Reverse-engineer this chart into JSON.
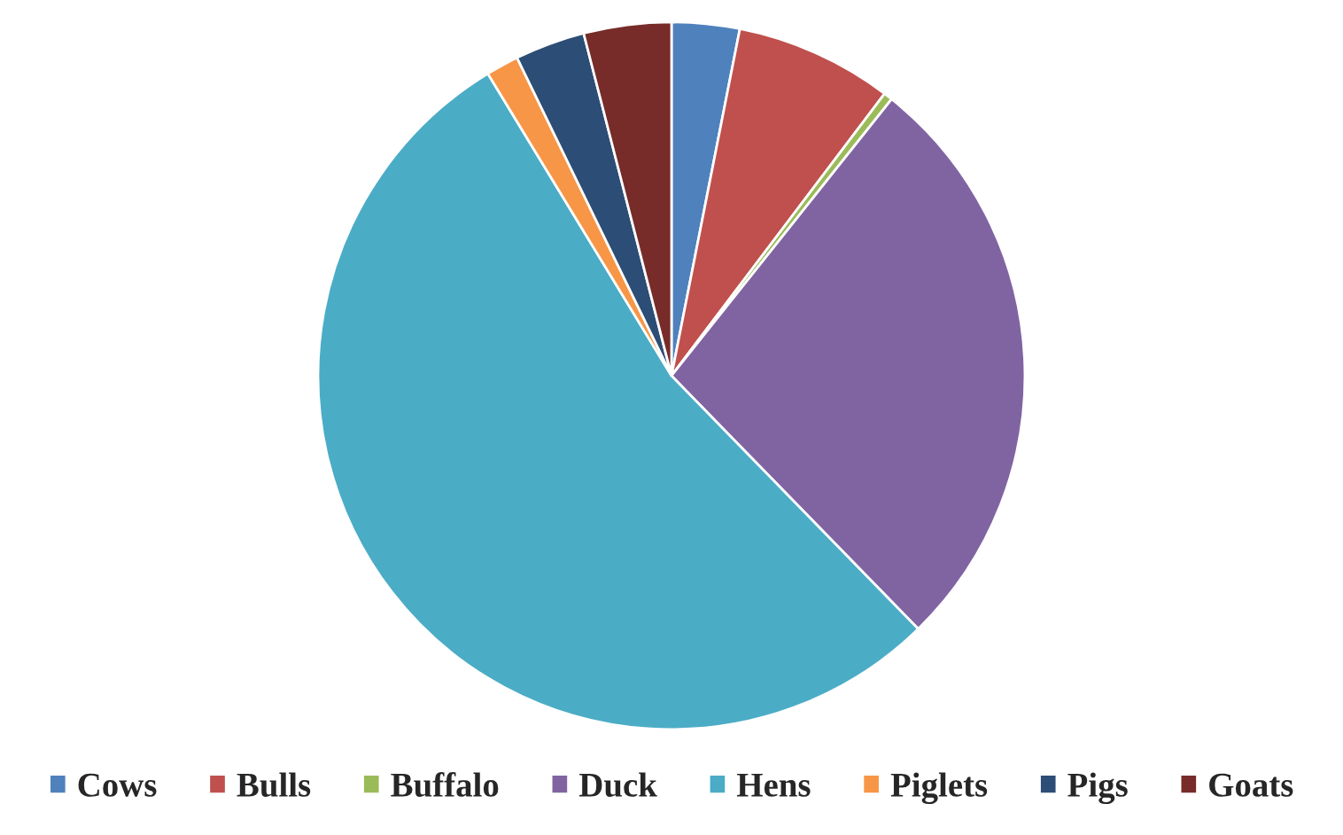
{
  "chart_data": {
    "type": "pie",
    "categories": [
      "Cows",
      "Bulls",
      "Buffalo",
      "Duck",
      "Hens",
      "Piglets",
      "Pigs",
      "Goats"
    ],
    "values": [
      3.1,
      7.2,
      0.4,
      27,
      53.6,
      1.5,
      3.2,
      4
    ],
    "colors": [
      "#4f81bd",
      "#c0504d",
      "#9bbb59",
      "#8064a2",
      "#4bacc6",
      "#f79646",
      "#2c4d75",
      "#772c2a"
    ],
    "legend": "bottom"
  }
}
